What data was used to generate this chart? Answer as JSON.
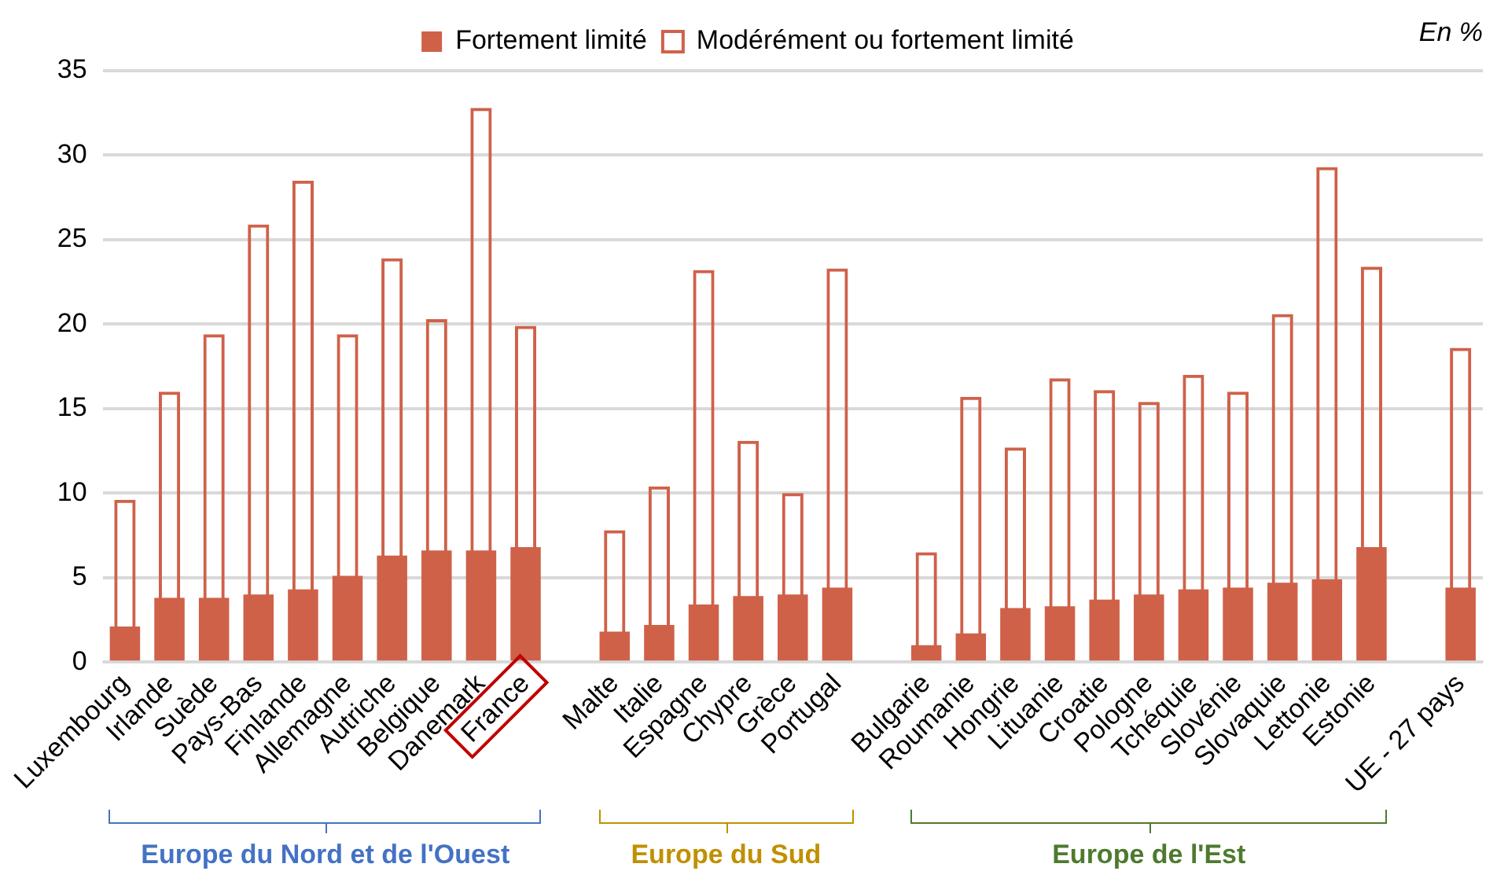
{
  "chart_data": {
    "type": "bar",
    "ylabel": "En %",
    "categories": [
      "Luxembourg",
      "Irlande",
      "Suède",
      "Pays-Bas",
      "Finlande",
      "Allemagne",
      "Autriche",
      "Belgique",
      "Danemark",
      "France",
      null,
      "Malte",
      "Italie",
      "Espagne",
      "Chypre",
      "Grèce",
      "Portugal",
      null,
      "Bulgarie",
      "Roumanie",
      "Hongrie",
      "Lituanie",
      "Croatie",
      "Pologne",
      "Tchéquie",
      "Slovénie",
      "Slovaquie",
      "Lettonie",
      "Estonie",
      null,
      "UE - 27 pays"
    ],
    "series": [
      {
        "name": "Fortement limité",
        "color": "#cf6149",
        "values": [
          2.1,
          3.8,
          3.8,
          4.0,
          4.3,
          5.1,
          6.3,
          6.6,
          6.6,
          6.8,
          null,
          1.8,
          2.2,
          3.4,
          3.9,
          4.0,
          4.4,
          null,
          1.0,
          1.7,
          3.2,
          3.3,
          3.7,
          4.0,
          4.3,
          4.4,
          4.7,
          4.9,
          6.8,
          null,
          4.4
        ]
      },
      {
        "name": "Modérément ou fortement limité",
        "color": "#cf6149",
        "values": [
          9.6,
          16.0,
          19.4,
          25.9,
          28.5,
          19.4,
          23.9,
          20.3,
          32.8,
          19.9,
          null,
          7.8,
          10.4,
          23.2,
          13.1,
          10.0,
          23.3,
          null,
          6.5,
          15.7,
          12.7,
          16.8,
          16.1,
          15.4,
          17.0,
          16.0,
          20.6,
          29.3,
          23.4,
          null,
          18.6
        ]
      }
    ],
    "ylim": [
      0,
      35
    ],
    "yticks": [
      0,
      5,
      10,
      15,
      20,
      25,
      30,
      35
    ],
    "grid": "y",
    "legend": "top",
    "annotations": [
      "Europe du Nord et de l'Ouest",
      "Europe du Sud",
      "Europe de l'Est"
    ]
  }
}
